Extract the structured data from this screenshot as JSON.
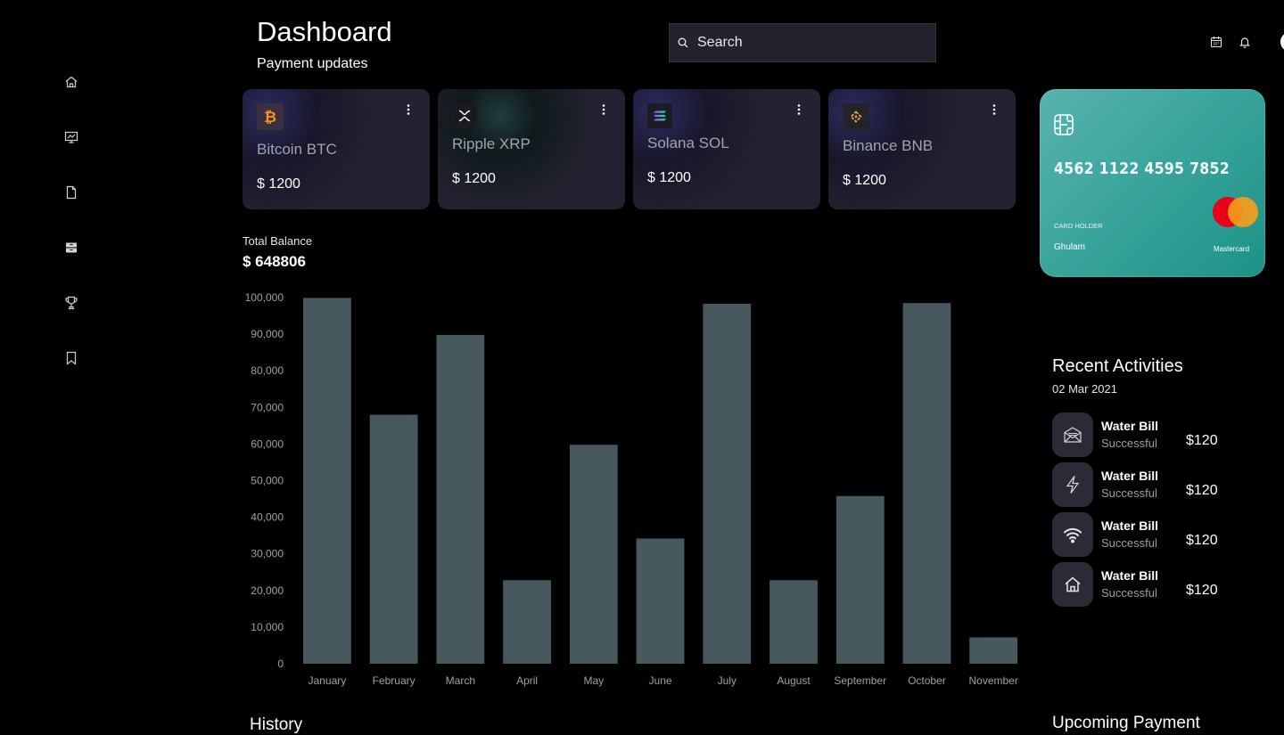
{
  "sidebar": {
    "icons": [
      "home-icon",
      "presentation-icon",
      "document-icon",
      "archive-icon",
      "trophy-icon",
      "bookmark-icon"
    ]
  },
  "header": {
    "title": "Dashboard",
    "subtitle": "Payment updates",
    "search_placeholder": "Search"
  },
  "coins": [
    {
      "name": "Bitcoin BTC",
      "amount": "$ 1200",
      "icon": "bitcoin-icon"
    },
    {
      "name": "Ripple XRP",
      "amount": "$ 1200",
      "icon": "ripple-icon"
    },
    {
      "name": "Solana SOL",
      "amount": "$ 1200",
      "icon": "solana-icon"
    },
    {
      "name": "Binance BNB",
      "amount": "$ 1200",
      "icon": "binance-icon"
    }
  ],
  "credit_card": {
    "number": "4562 1122 4595 7852",
    "holder_label": "CARD HOLDER",
    "holder": "Ghulam",
    "brand": "Mastercard"
  },
  "balance": {
    "label": "Total Balance",
    "value": "$ 648806"
  },
  "chart_data": {
    "type": "bar",
    "title": "",
    "xlabel": "",
    "ylabel": "",
    "categories": [
      "January",
      "February",
      "March",
      "April",
      "May",
      "June",
      "July",
      "August",
      "September",
      "October",
      "November"
    ],
    "values": [
      99900,
      68000,
      89800,
      22800,
      59800,
      34200,
      98300,
      22800,
      45800,
      98500,
      7200
    ],
    "ylim": [
      0,
      100000
    ],
    "yticks": [
      0,
      10000,
      20000,
      30000,
      40000,
      50000,
      60000,
      70000,
      80000,
      90000,
      100000
    ],
    "ytick_labels": [
      "0",
      "10,000",
      "20,000",
      "30,000",
      "40,000",
      "50,000",
      "60,000",
      "70,000",
      "80,000",
      "90,000",
      "100,000"
    ],
    "grid": false,
    "bar_color": "#48585f"
  },
  "recent": {
    "title": "Recent Activities",
    "date": "02 Mar 2021",
    "items": [
      {
        "name": "Water Bill",
        "status": "Successful",
        "amount": "$120",
        "icon": "mail-icon"
      },
      {
        "name": "Water Bill",
        "status": "Successful",
        "amount": "$120",
        "icon": "lightning-icon"
      },
      {
        "name": "Water Bill",
        "status": "Successful",
        "amount": "$120",
        "icon": "wifi-icon"
      },
      {
        "name": "Water Bill",
        "status": "Successful",
        "amount": "$120",
        "icon": "house-icon"
      }
    ]
  },
  "sections": {
    "history": "History",
    "upcoming": "Upcoming Payment"
  },
  "colors": {
    "background": "#000000",
    "card": "#232230",
    "accent_teal": "#3ba59c",
    "bitcoin": "#f7931a",
    "binance": "#f3ba2f"
  }
}
